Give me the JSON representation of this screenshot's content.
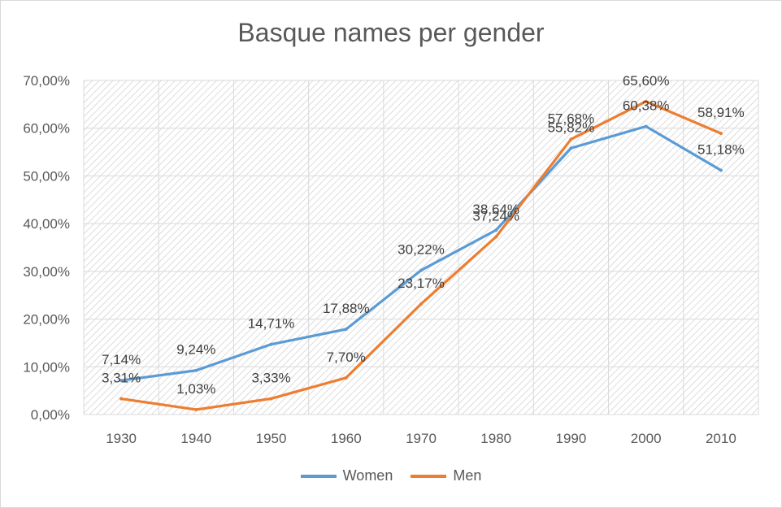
{
  "chart_data": {
    "type": "line",
    "title": "Basque names per gender",
    "xlabel": "",
    "ylabel": "",
    "categories": [
      "1930",
      "1940",
      "1950",
      "1960",
      "1970",
      "1980",
      "1990",
      "2000",
      "2010"
    ],
    "ylim": [
      0,
      70
    ],
    "yticks": [
      "0,00%",
      "10,00%",
      "20,00%",
      "30,00%",
      "40,00%",
      "50,00%",
      "60,00%",
      "70,00%"
    ],
    "grid": true,
    "legend_position": "bottom",
    "series": [
      {
        "name": "Women",
        "color": "#5b9bd5",
        "values": [
          7.14,
          9.24,
          14.71,
          17.88,
          30.22,
          38.64,
          55.82,
          60.38,
          51.18
        ],
        "labels": [
          "7,14%",
          "9,24%",
          "14,71%",
          "17,88%",
          "30,22%",
          "38,64%",
          "55,82%",
          "60,38%",
          "51,18%"
        ]
      },
      {
        "name": "Men",
        "color": "#ed7d31",
        "values": [
          3.31,
          1.03,
          3.33,
          7.7,
          23.17,
          37.24,
          57.68,
          65.6,
          58.91
        ],
        "labels": [
          "3,31%",
          "1,03%",
          "3,33%",
          "7,70%",
          "23,17%",
          "37,24%",
          "57,68%",
          "65,60%",
          "58,91%"
        ]
      }
    ]
  }
}
